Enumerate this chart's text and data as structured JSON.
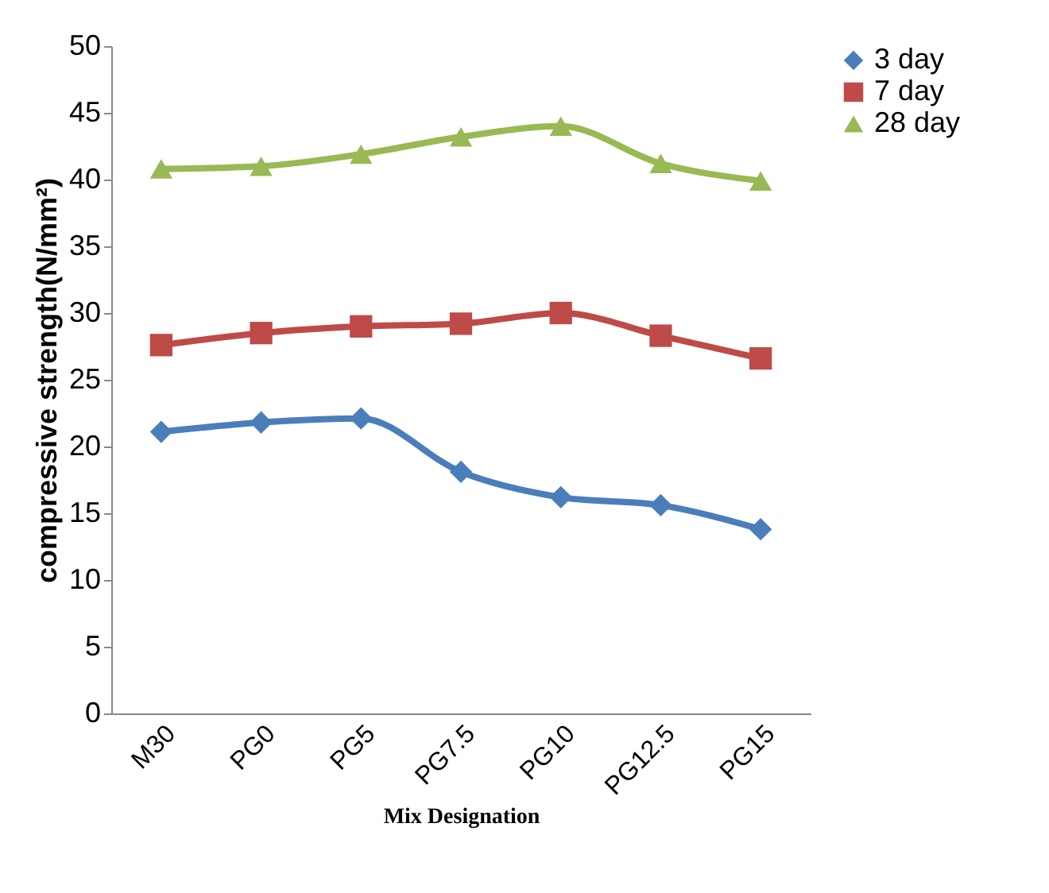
{
  "chart_data": {
    "type": "line",
    "xlabel": "Mix Designation",
    "ylabel": "compressive strength(N/mm²)",
    "categories": [
      "M30",
      "PG0",
      "PG5",
      "PG7.5",
      "PG10",
      "PG12.5",
      "PG15"
    ],
    "series": [
      {
        "name": "3 day",
        "color": "#4a7ebb",
        "marker": "diamond",
        "values": [
          21.1,
          21.8,
          22.1,
          18.1,
          16.2,
          15.6,
          13.8
        ]
      },
      {
        "name": "7 day",
        "color": "#be4b48",
        "marker": "square",
        "values": [
          27.6,
          28.5,
          29.0,
          29.2,
          30.0,
          28.3,
          26.6
        ]
      },
      {
        "name": "28 day",
        "color": "#98b954",
        "marker": "triangle",
        "values": [
          40.8,
          41.0,
          41.9,
          43.2,
          44.0,
          41.2,
          39.9
        ]
      }
    ],
    "ylim": [
      0,
      50
    ],
    "yticks": [
      0,
      5,
      10,
      15,
      20,
      25,
      30,
      35,
      40,
      45,
      50
    ],
    "grid": false,
    "legend": "right",
    "line_style": "solid"
  }
}
